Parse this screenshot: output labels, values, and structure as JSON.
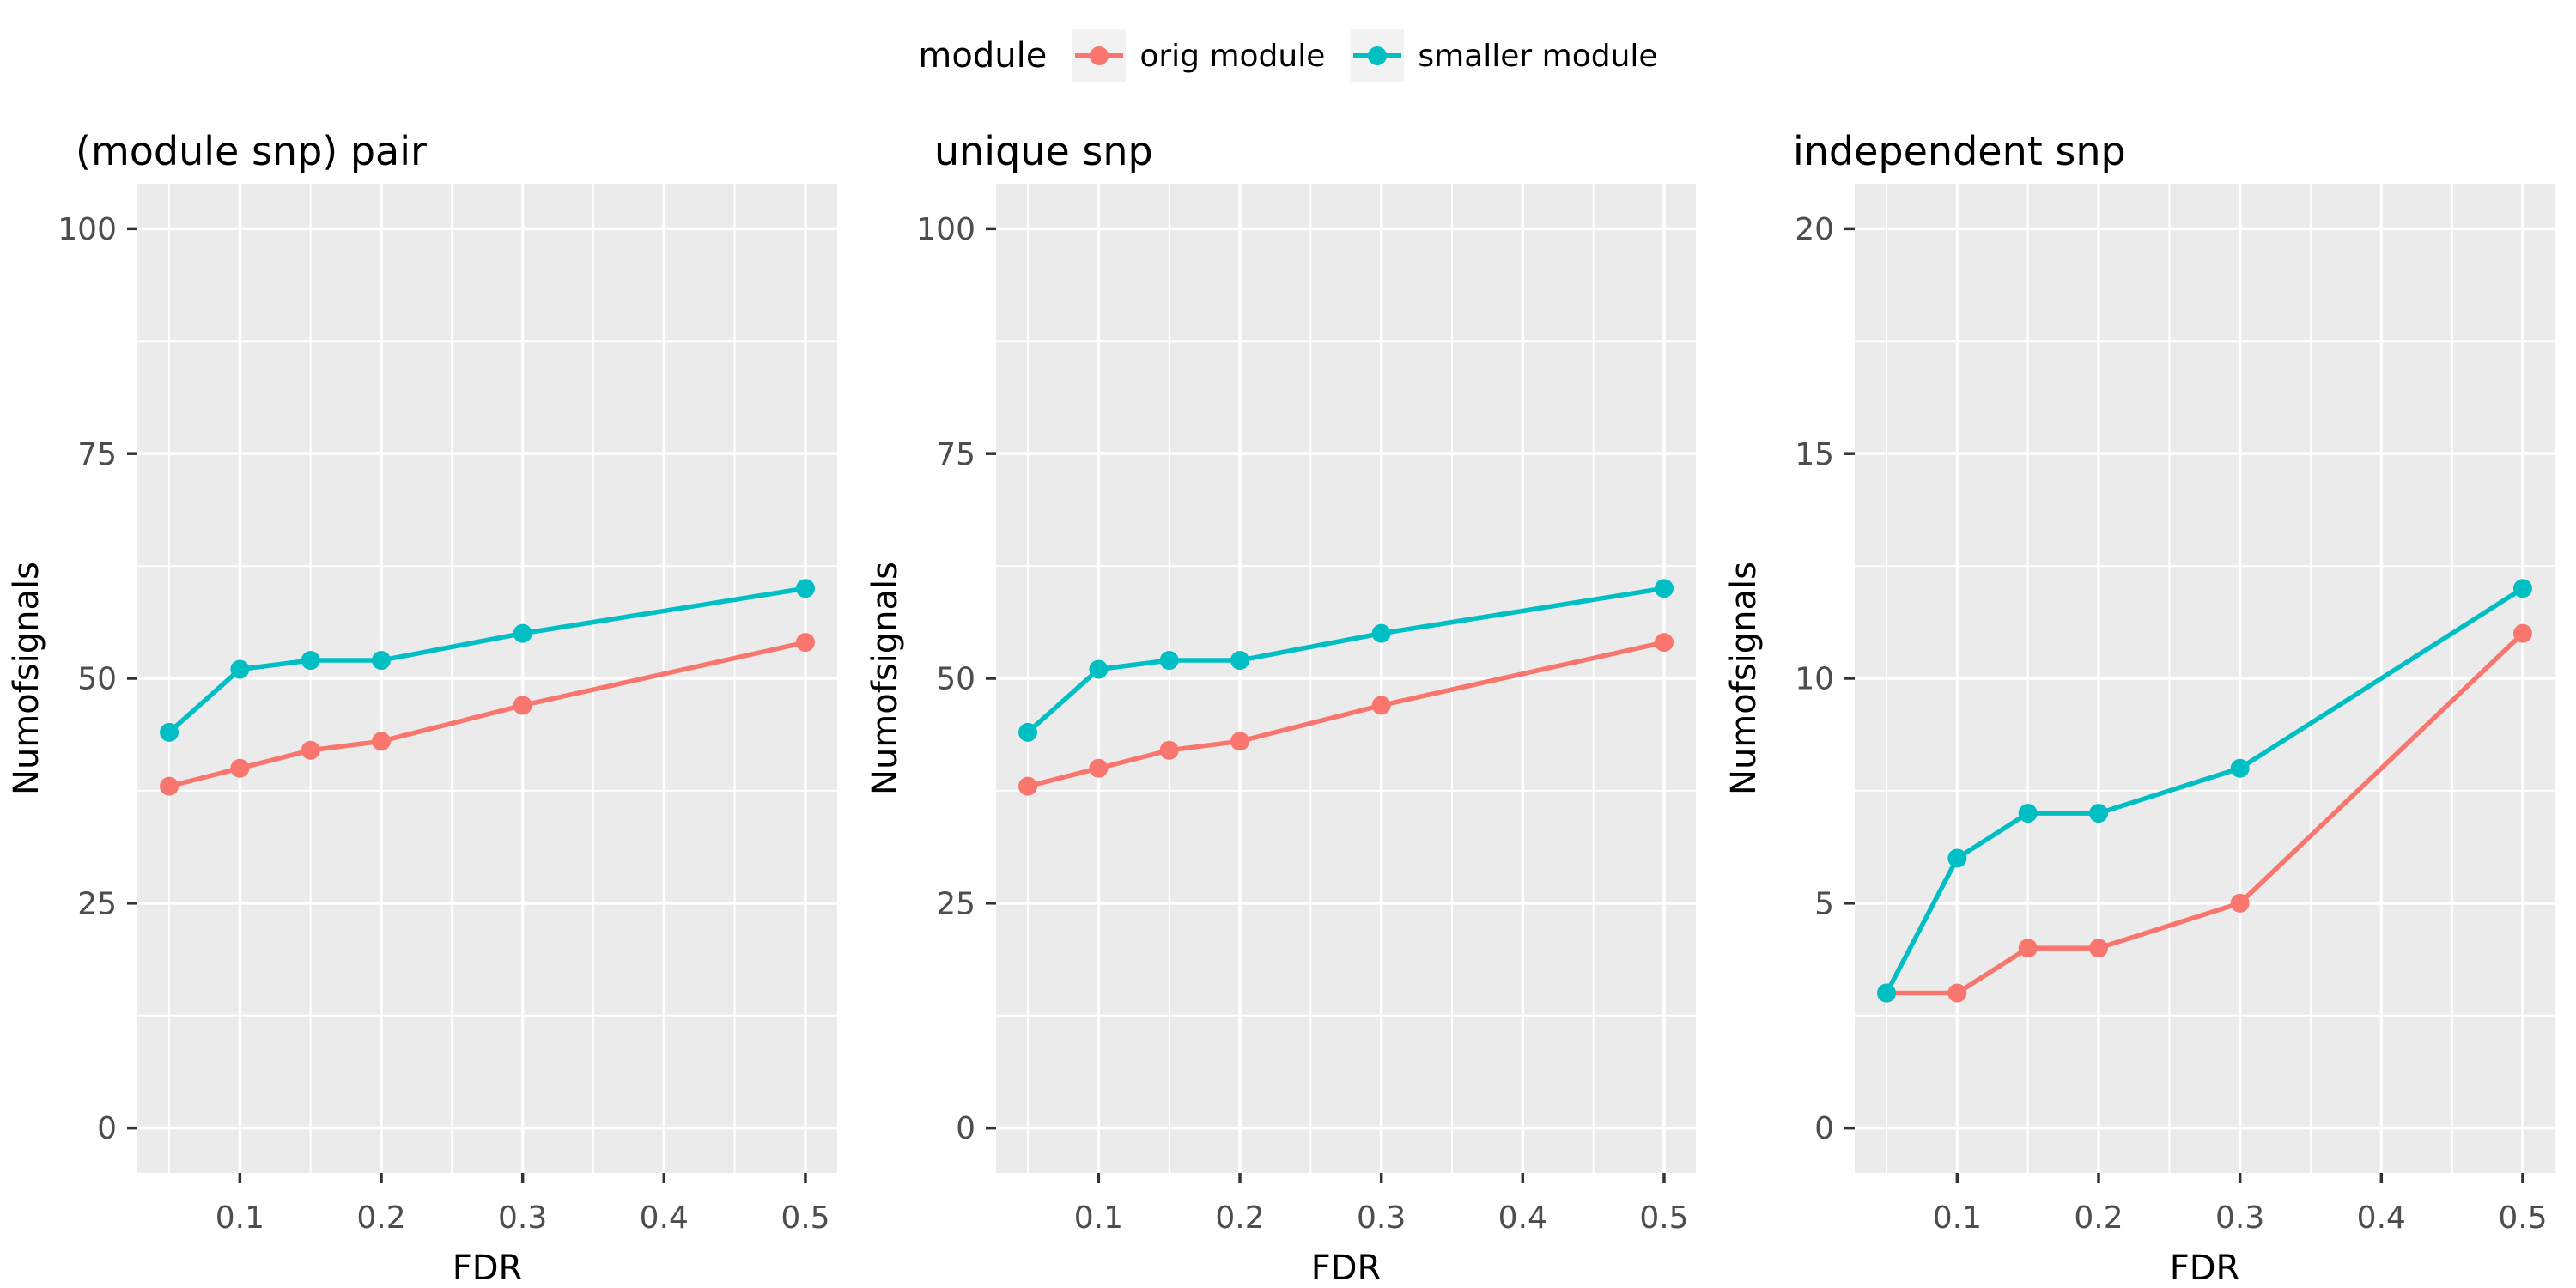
{
  "legend": {
    "title": "module",
    "items": [
      {
        "label": "orig module",
        "color": "#F8766D"
      },
      {
        "label": "smaller module",
        "color": "#00BFC4"
      }
    ]
  },
  "theme": {
    "panel_bg": "#EBEBEB",
    "grid_color": "#FFFFFF",
    "tick_mark_color": "#333333",
    "tick_label_color": "#4D4D4D",
    "text_color": "#000000"
  },
  "chart_data": [
    {
      "type": "line",
      "title": "(module snp) pair",
      "xlabel": "FDR",
      "ylabel": "Numofsignals",
      "x": [
        0.05,
        0.1,
        0.15,
        0.2,
        0.3,
        0.5
      ],
      "xlim": [
        0.0275,
        0.5225
      ],
      "xticks": [
        0.1,
        0.2,
        0.3,
        0.4,
        0.5
      ],
      "xticks_minor": [
        0.05,
        0.15,
        0.25,
        0.35,
        0.45
      ],
      "ylim": [
        -5,
        105
      ],
      "yticks": [
        0,
        25,
        50,
        75,
        100
      ],
      "yticks_minor": [
        12.5,
        37.5,
        62.5,
        87.5
      ],
      "grid": true,
      "legend_position": "top",
      "series": [
        {
          "name": "orig module",
          "color": "#F8766D",
          "values": [
            38,
            40,
            42,
            43,
            47,
            54
          ]
        },
        {
          "name": "smaller module",
          "color": "#00BFC4",
          "values": [
            44,
            51,
            52,
            52,
            55,
            60
          ]
        }
      ]
    },
    {
      "type": "line",
      "title": "unique snp",
      "xlabel": "FDR",
      "ylabel": "Numofsignals",
      "x": [
        0.05,
        0.1,
        0.15,
        0.2,
        0.3,
        0.5
      ],
      "xlim": [
        0.0275,
        0.5225
      ],
      "xticks": [
        0.1,
        0.2,
        0.3,
        0.4,
        0.5
      ],
      "xticks_minor": [
        0.05,
        0.15,
        0.25,
        0.35,
        0.45
      ],
      "ylim": [
        -5,
        105
      ],
      "yticks": [
        0,
        25,
        50,
        75,
        100
      ],
      "yticks_minor": [
        12.5,
        37.5,
        62.5,
        87.5
      ],
      "grid": true,
      "legend_position": "top",
      "series": [
        {
          "name": "orig module",
          "color": "#F8766D",
          "values": [
            38,
            40,
            42,
            43,
            47,
            54
          ]
        },
        {
          "name": "smaller module",
          "color": "#00BFC4",
          "values": [
            44,
            51,
            52,
            52,
            55,
            60
          ]
        }
      ]
    },
    {
      "type": "line",
      "title": "independent snp",
      "xlabel": "FDR",
      "ylabel": "Numofsignals",
      "x": [
        0.05,
        0.1,
        0.15,
        0.2,
        0.3,
        0.5
      ],
      "xlim": [
        0.0275,
        0.5225
      ],
      "xticks": [
        0.1,
        0.2,
        0.3,
        0.4,
        0.5
      ],
      "xticks_minor": [
        0.05,
        0.15,
        0.25,
        0.35,
        0.45
      ],
      "ylim": [
        -1,
        21
      ],
      "yticks": [
        0,
        5,
        10,
        15,
        20
      ],
      "yticks_minor": [
        2.5,
        7.5,
        12.5,
        17.5
      ],
      "grid": true,
      "legend_position": "top",
      "series": [
        {
          "name": "orig module",
          "color": "#F8766D",
          "values": [
            3,
            3,
            4,
            4,
            5,
            11
          ]
        },
        {
          "name": "smaller module",
          "color": "#00BFC4",
          "values": [
            3,
            6,
            7,
            7,
            8,
            12
          ]
        }
      ]
    }
  ]
}
